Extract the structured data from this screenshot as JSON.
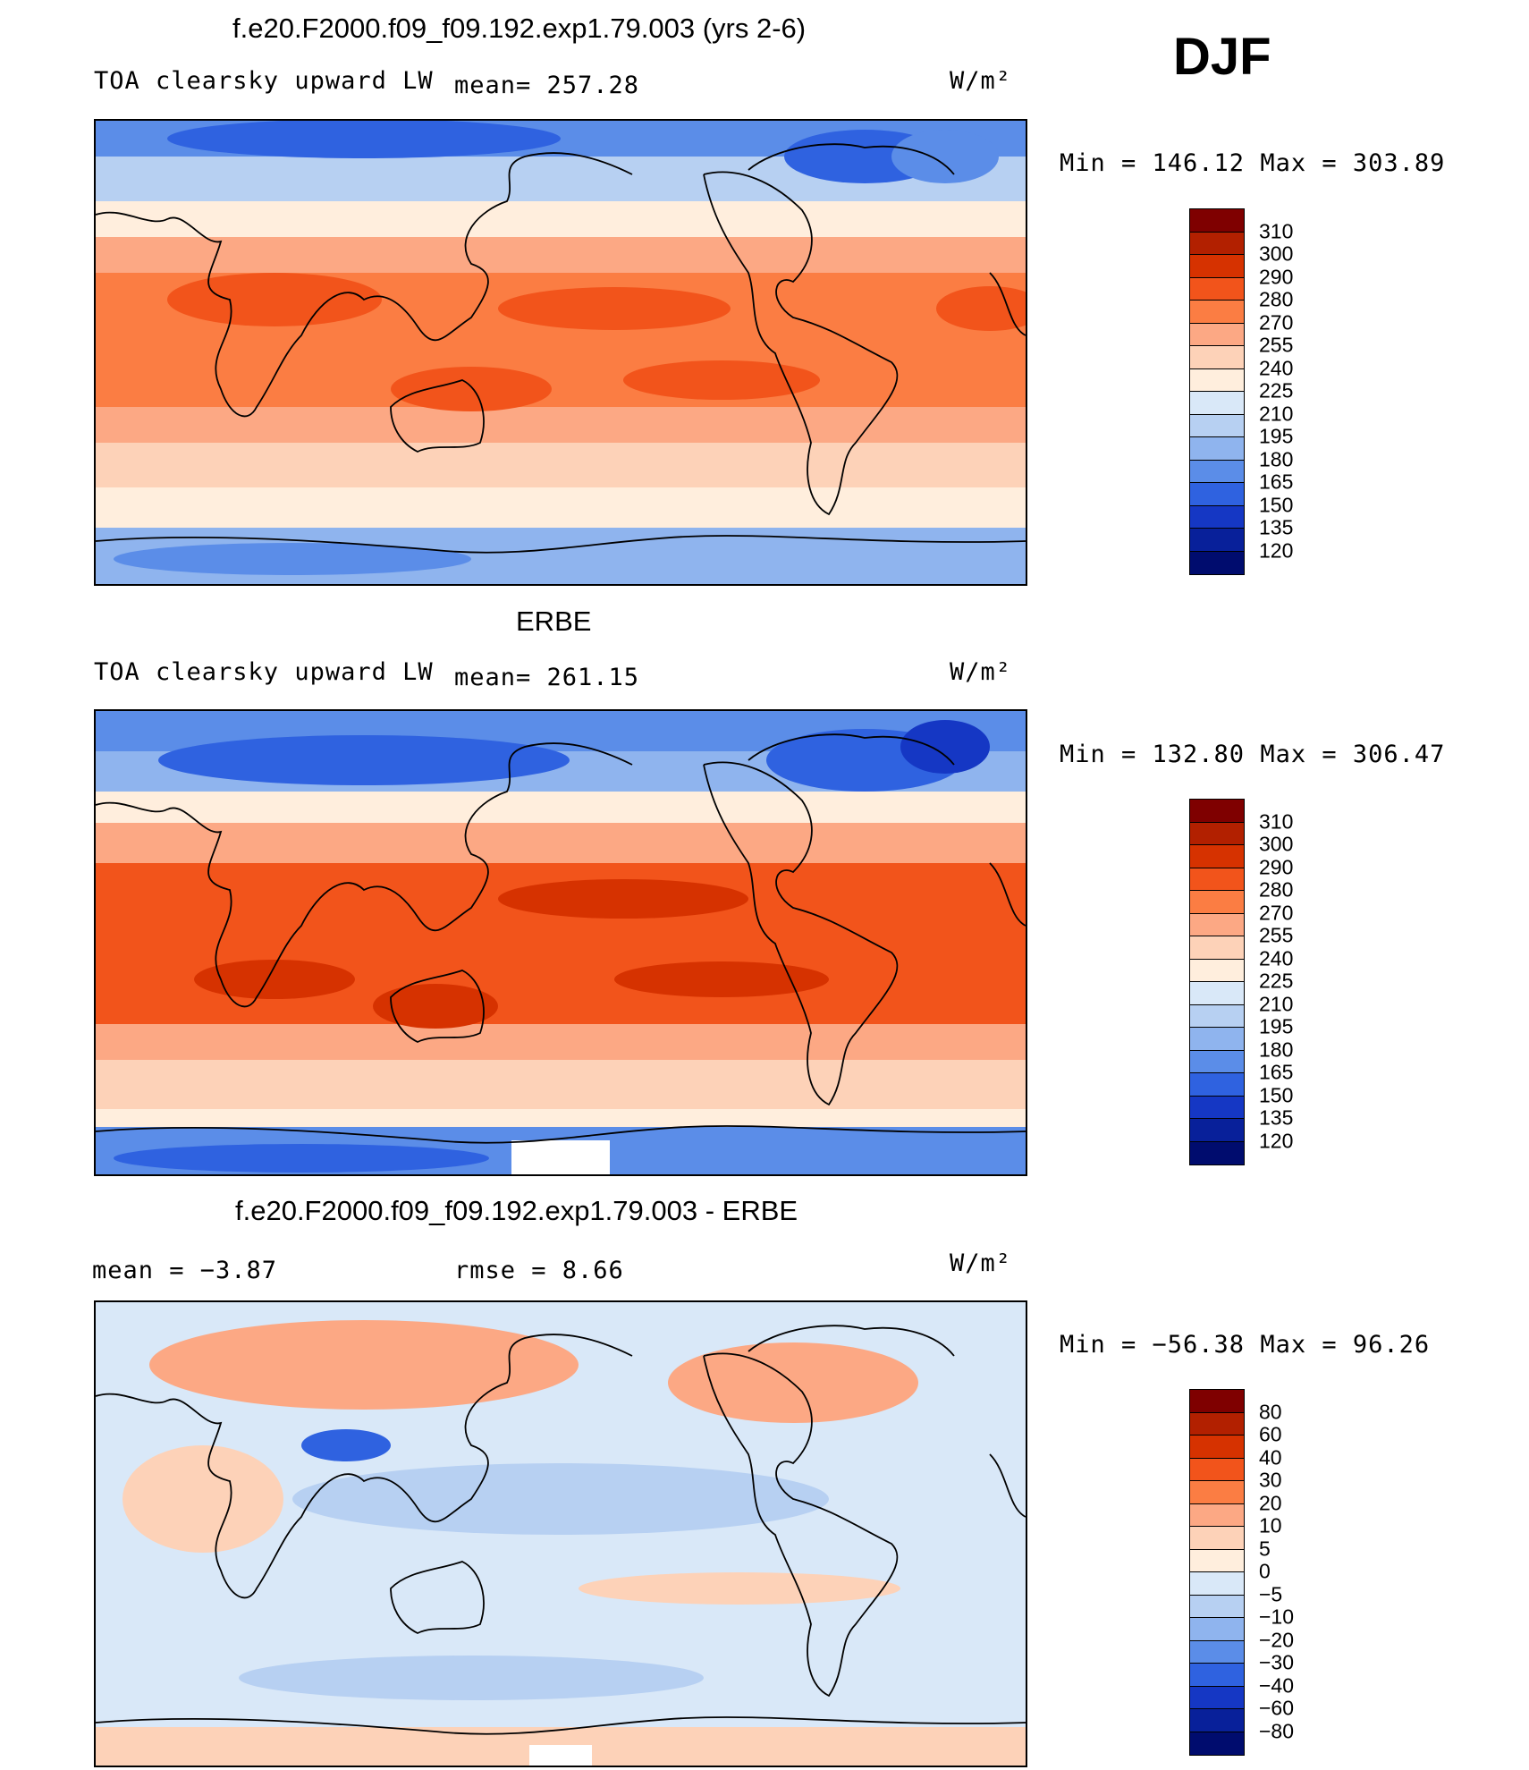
{
  "season": "DJF",
  "chart_data": [
    {
      "type": "heatmap",
      "title": "f.e20.F2000.f09_f09.192.exp1.79.003 (yrs 2-6)",
      "variable": "TOA clearsky upward LW",
      "mean_text": "mean= 257.28",
      "units": "W/m²",
      "min_max_text": "Min  =  146.12  Max  =  303.89",
      "min": 146.12,
      "max": 303.89,
      "mean": 257.28,
      "levels": [
        310,
        300,
        290,
        280,
        270,
        255,
        240,
        225,
        210,
        195,
        180,
        165,
        150,
        135,
        120
      ],
      "colors": [
        "#7f0000",
        "#b22000",
        "#d63200",
        "#f2541b",
        "#fb7d43",
        "#fca884",
        "#fdd2b8",
        "#ffeedd",
        "#d9e8f8",
        "#b7d0f2",
        "#8fb4ee",
        "#5b8de8",
        "#2f62e0",
        "#1537c4",
        "#08209a",
        "#000c6e"
      ]
    },
    {
      "type": "heatmap",
      "title": "ERBE",
      "variable": "TOA clearsky upward LW",
      "mean_text": "mean= 261.15",
      "units": "W/m²",
      "min_max_text": "Min  =  132.80  Max  =  306.47",
      "min": 132.8,
      "max": 306.47,
      "mean": 261.15,
      "levels": [
        310,
        300,
        290,
        280,
        270,
        255,
        240,
        225,
        210,
        195,
        180,
        165,
        150,
        135,
        120
      ],
      "colors": [
        "#7f0000",
        "#b22000",
        "#d63200",
        "#f2541b",
        "#fb7d43",
        "#fca884",
        "#fdd2b8",
        "#ffeedd",
        "#d9e8f8",
        "#b7d0f2",
        "#8fb4ee",
        "#5b8de8",
        "#2f62e0",
        "#1537c4",
        "#08209a",
        "#000c6e"
      ]
    },
    {
      "type": "heatmap",
      "title": "f.e20.F2000.f09_f09.192.exp1.79.003 - ERBE",
      "mean_text": "mean  =    −3.87",
      "rmse_text": "rmse  =    8.66",
      "units": "W/m²",
      "min_max_text": "Min  =  −56.38  Max  =   96.26",
      "min": -56.38,
      "max": 96.26,
      "mean": -3.87,
      "rmse": 8.66,
      "levels": [
        "80",
        "60",
        "40",
        "30",
        "20",
        "10",
        "5",
        "0",
        "−5",
        "−10",
        "−20",
        "−30",
        "−40",
        "−60",
        "−80"
      ],
      "colors": [
        "#7f0000",
        "#b22000",
        "#d63200",
        "#f2541b",
        "#fb7d43",
        "#fca884",
        "#fdd2b8",
        "#ffeedd",
        "#d9e8f8",
        "#b7d0f2",
        "#8fb4ee",
        "#5b8de8",
        "#2f62e0",
        "#1537c4",
        "#08209a",
        "#000c6e"
      ]
    }
  ]
}
